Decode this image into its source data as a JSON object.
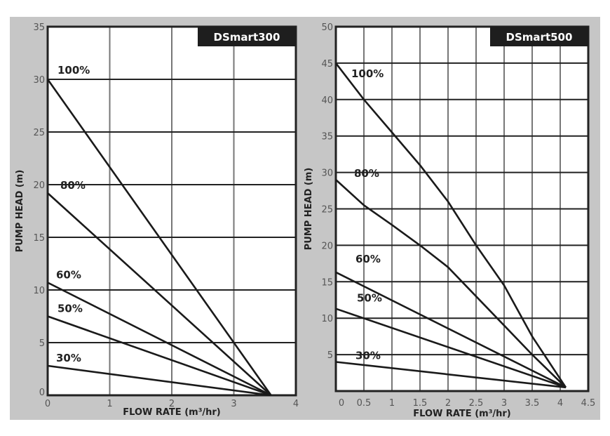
{
  "chart_data": [
    {
      "type": "line",
      "title": "DSmart300",
      "xlabel": "FLOW RATE (m³/hr)",
      "ylabel": "PUMP HEAD (m)",
      "xlim": [
        0,
        4
      ],
      "ylim": [
        0,
        35
      ],
      "xticks": [
        0,
        1,
        2,
        3,
        4
      ],
      "yticks": [
        0,
        5,
        10,
        15,
        20,
        25,
        30,
        35
      ],
      "grid": true,
      "series": [
        {
          "name": "100%",
          "x": [
            0,
            3.6
          ],
          "y": [
            30,
            0
          ]
        },
        {
          "name": "80%",
          "x": [
            0,
            3.6
          ],
          "y": [
            19.2,
            0
          ]
        },
        {
          "name": "60%",
          "x": [
            0,
            3.6
          ],
          "y": [
            10.7,
            0
          ]
        },
        {
          "name": "50%",
          "x": [
            0,
            3.6
          ],
          "y": [
            7.5,
            0
          ]
        },
        {
          "name": "30%",
          "x": [
            0,
            3.6
          ],
          "y": [
            2.8,
            0
          ]
        }
      ]
    },
    {
      "type": "line",
      "title": "DSmart500",
      "xlabel": "FLOW RATE (m³/hr)",
      "ylabel": "PUMP HEAD (m)",
      "xlim": [
        0,
        4.5
      ],
      "ylim": [
        0,
        50
      ],
      "xticks": [
        0,
        0.5,
        1,
        1.5,
        2,
        2.5,
        3,
        3.5,
        4,
        4.5
      ],
      "yticks": [
        5,
        10,
        15,
        20,
        25,
        30,
        35,
        40,
        45,
        50
      ],
      "grid": true,
      "series": [
        {
          "name": "100%",
          "x": [
            0,
            0.5,
            1,
            1.5,
            2,
            2.5,
            3,
            3.5,
            4.1
          ],
          "y": [
            45,
            40,
            35.5,
            31,
            26,
            20,
            14.5,
            7.5,
            0.5
          ]
        },
        {
          "name": "80%",
          "x": [
            0,
            0.5,
            1,
            1.5,
            2,
            2.5,
            3,
            3.5,
            4.1
          ],
          "y": [
            29,
            25.5,
            22.8,
            20,
            17,
            13,
            9,
            5,
            0.5
          ]
        },
        {
          "name": "60%",
          "x": [
            0,
            4.1
          ],
          "y": [
            16.3,
            0.5
          ]
        },
        {
          "name": "50%",
          "x": [
            0,
            4.1
          ],
          "y": [
            11.3,
            0.5
          ]
        },
        {
          "name": "30%",
          "x": [
            0,
            4.1
          ],
          "y": [
            4,
            0.5
          ]
        }
      ]
    }
  ]
}
